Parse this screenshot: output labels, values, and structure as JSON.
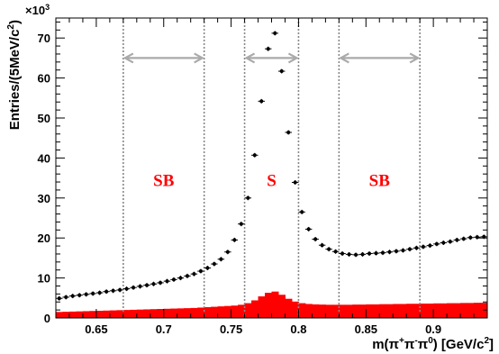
{
  "chart_data": {
    "type": "scatter",
    "xlabel": {
      "text": "m(π",
      "sup1": "+",
      "mid1": "π",
      "sup2": "-",
      "mid2": "π",
      "sup3": "0",
      "end": ") [GeV/c",
      "sup4": "2",
      "close": "]"
    },
    "ylabel": {
      "text": "Entries/(5MeV/c",
      "sup": "2",
      "close": ")"
    },
    "y_multiplier": {
      "base": "×10",
      "exp": "3"
    },
    "xlim": [
      0.62,
      0.94
    ],
    "ylim": [
      0,
      75
    ],
    "x_ticks": [
      0.65,
      0.7,
      0.75,
      0.8,
      0.85,
      0.9
    ],
    "x_tick_labels": [
      "0.65",
      "0.7",
      "0.75",
      "0.8",
      "0.85",
      "0.9"
    ],
    "y_ticks": [
      0,
      10,
      20,
      30,
      40,
      50,
      60,
      70
    ],
    "y_tick_labels": [
      "0",
      "10",
      "20",
      "30",
      "40",
      "50",
      "60",
      "70"
    ],
    "bin_width": 0.005,
    "series": [
      {
        "kind": "points",
        "color": "#000000",
        "x": [
          0.6225,
          0.6275,
          0.6325,
          0.6375,
          0.6425,
          0.6475,
          0.6525,
          0.6575,
          0.6625,
          0.6675,
          0.6725,
          0.6775,
          0.6825,
          0.6875,
          0.6925,
          0.6975,
          0.7025,
          0.7075,
          0.7125,
          0.7175,
          0.7225,
          0.7275,
          0.7325,
          0.7375,
          0.7425,
          0.7475,
          0.7525,
          0.7575,
          0.7625,
          0.7675,
          0.7725,
          0.7775,
          0.7825,
          0.7875,
          0.7925,
          0.7975,
          0.8025,
          0.8075,
          0.8125,
          0.8175,
          0.8225,
          0.8275,
          0.8325,
          0.8375,
          0.8425,
          0.8475,
          0.8525,
          0.8575,
          0.8625,
          0.8675,
          0.8725,
          0.8775,
          0.8825,
          0.8875,
          0.8925,
          0.8975,
          0.9025,
          0.9075,
          0.9125,
          0.9175,
          0.9225,
          0.9275,
          0.9325,
          0.9375
        ],
        "values": [
          4.9,
          5.2,
          5.5,
          5.7,
          5.9,
          6.1,
          6.3,
          6.6,
          6.8,
          7.0,
          7.3,
          7.6,
          7.9,
          8.2,
          8.5,
          8.8,
          9.2,
          9.6,
          10.0,
          10.5,
          11.0,
          11.7,
          12.5,
          13.5,
          14.7,
          16.5,
          19.5,
          23.5,
          30.0,
          40.7,
          54.2,
          67.3,
          71.2,
          61.7,
          46.4,
          33.9,
          26.5,
          22.2,
          19.7,
          18.2,
          17.2,
          16.6,
          16.1,
          15.9,
          15.8,
          15.9,
          16.1,
          16.2,
          16.3,
          16.5,
          16.7,
          16.9,
          17.2,
          17.5,
          17.8,
          18.1,
          18.5,
          18.8,
          19.1,
          19.5,
          19.8,
          20.1,
          20.2,
          20.3
        ]
      },
      {
        "kind": "filled-histogram",
        "color": "#ff0000",
        "x": [
          0.6225,
          0.6275,
          0.6325,
          0.6375,
          0.6425,
          0.6475,
          0.6525,
          0.6575,
          0.6625,
          0.6675,
          0.6725,
          0.6775,
          0.6825,
          0.6875,
          0.6925,
          0.6975,
          0.7025,
          0.7075,
          0.7125,
          0.7175,
          0.7225,
          0.7275,
          0.7325,
          0.7375,
          0.7425,
          0.7475,
          0.7525,
          0.7575,
          0.7625,
          0.7675,
          0.7725,
          0.7775,
          0.7825,
          0.7875,
          0.7925,
          0.7975,
          0.8025,
          0.8075,
          0.8125,
          0.8175,
          0.8225,
          0.8275,
          0.8325,
          0.8375,
          0.8425,
          0.8475,
          0.8525,
          0.8575,
          0.8625,
          0.8675,
          0.8725,
          0.8775,
          0.8825,
          0.8875,
          0.8925,
          0.8975,
          0.9025,
          0.9075,
          0.9125,
          0.9175,
          0.9225,
          0.9275,
          0.9325,
          0.9375
        ],
        "values": [
          1.5,
          1.55,
          1.6,
          1.65,
          1.7,
          1.75,
          1.8,
          1.85,
          1.9,
          1.95,
          2.0,
          2.05,
          2.1,
          2.15,
          2.2,
          2.25,
          2.3,
          2.35,
          2.4,
          2.45,
          2.5,
          2.6,
          2.7,
          2.8,
          2.9,
          3.0,
          3.1,
          3.3,
          3.7,
          4.4,
          5.4,
          6.3,
          6.6,
          5.8,
          4.8,
          4.1,
          3.7,
          3.5,
          3.4,
          3.35,
          3.3,
          3.3,
          3.3,
          3.3,
          3.35,
          3.35,
          3.4,
          3.4,
          3.45,
          3.45,
          3.5,
          3.5,
          3.55,
          3.55,
          3.6,
          3.6,
          3.65,
          3.65,
          3.7,
          3.7,
          3.75,
          3.75,
          3.8,
          3.8
        ]
      }
    ],
    "region_lines": [
      0.67,
      0.73,
      0.76,
      0.8,
      0.83,
      0.89
    ],
    "regions": [
      {
        "label": "SB",
        "from": 0.67,
        "to": 0.73
      },
      {
        "label": "S",
        "from": 0.76,
        "to": 0.8
      },
      {
        "label": "SB",
        "from": 0.83,
        "to": 0.89
      }
    ],
    "arrow_y": 65,
    "region_label_y": 34,
    "colors": {
      "region_line": "#888888",
      "arrow": "#aaaaaa",
      "region_label": "#ff0000"
    },
    "grid": false,
    "legend": "none"
  }
}
